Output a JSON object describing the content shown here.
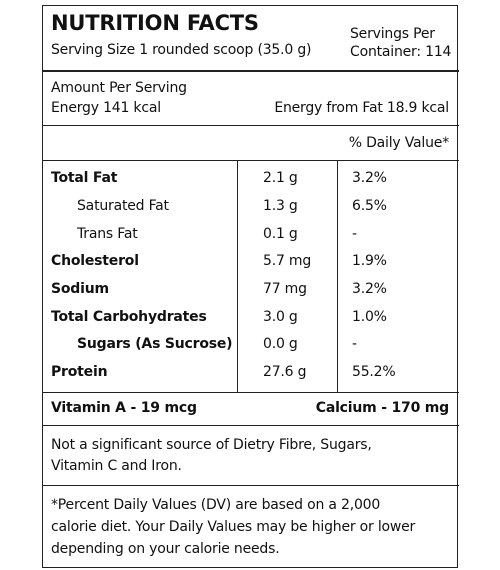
{
  "header": {
    "title": "NUTRITION FACTS",
    "serving_size": "Serving Size 1 rounded scoop (35.0 g)",
    "servings_per_container": [
      "Servings Per",
      "Container: 114"
    ]
  },
  "amount": {
    "label": "Amount Per Serving",
    "energy": "Energy 141 kcal",
    "energy_from_fat": "Energy from Fat 18.9 kcal"
  },
  "daily_value_header": "% Daily Value*",
  "table": {
    "rows": [
      [
        "Total Fat",
        "2.1 g",
        "3.2%"
      ],
      [
        "Saturated Fat",
        "1.3 g",
        "6.5%"
      ],
      [
        "Trans Fat",
        "0.1 g",
        "-"
      ],
      [
        "Cholesterol",
        "5.7 mg",
        "1.9%"
      ],
      [
        "Sodium",
        "77 mg",
        "3.2%"
      ],
      [
        "Total Carbohydrates",
        "3.0 g",
        "1.0%"
      ],
      [
        "Sugars (As Sucrose)",
        "0.0 g",
        "-"
      ],
      [
        "Protein",
        "27.6 g",
        "55.2%"
      ]
    ]
  },
  "vitamins": {
    "vitamin_a": "Vitamin A - 19 mcg",
    "calcium": "Calcium - 170 mg"
  },
  "note": [
    "Not a significant source of Dietry Fibre, Sugars,",
    "Vitamin C and Iron."
  ],
  "footnote": [
    "*Percent Daily Values (DV) are based on a 2,000",
    "calorie diet. Your Daily Values may be higher or lower",
    "depending on your calorie needs."
  ]
}
